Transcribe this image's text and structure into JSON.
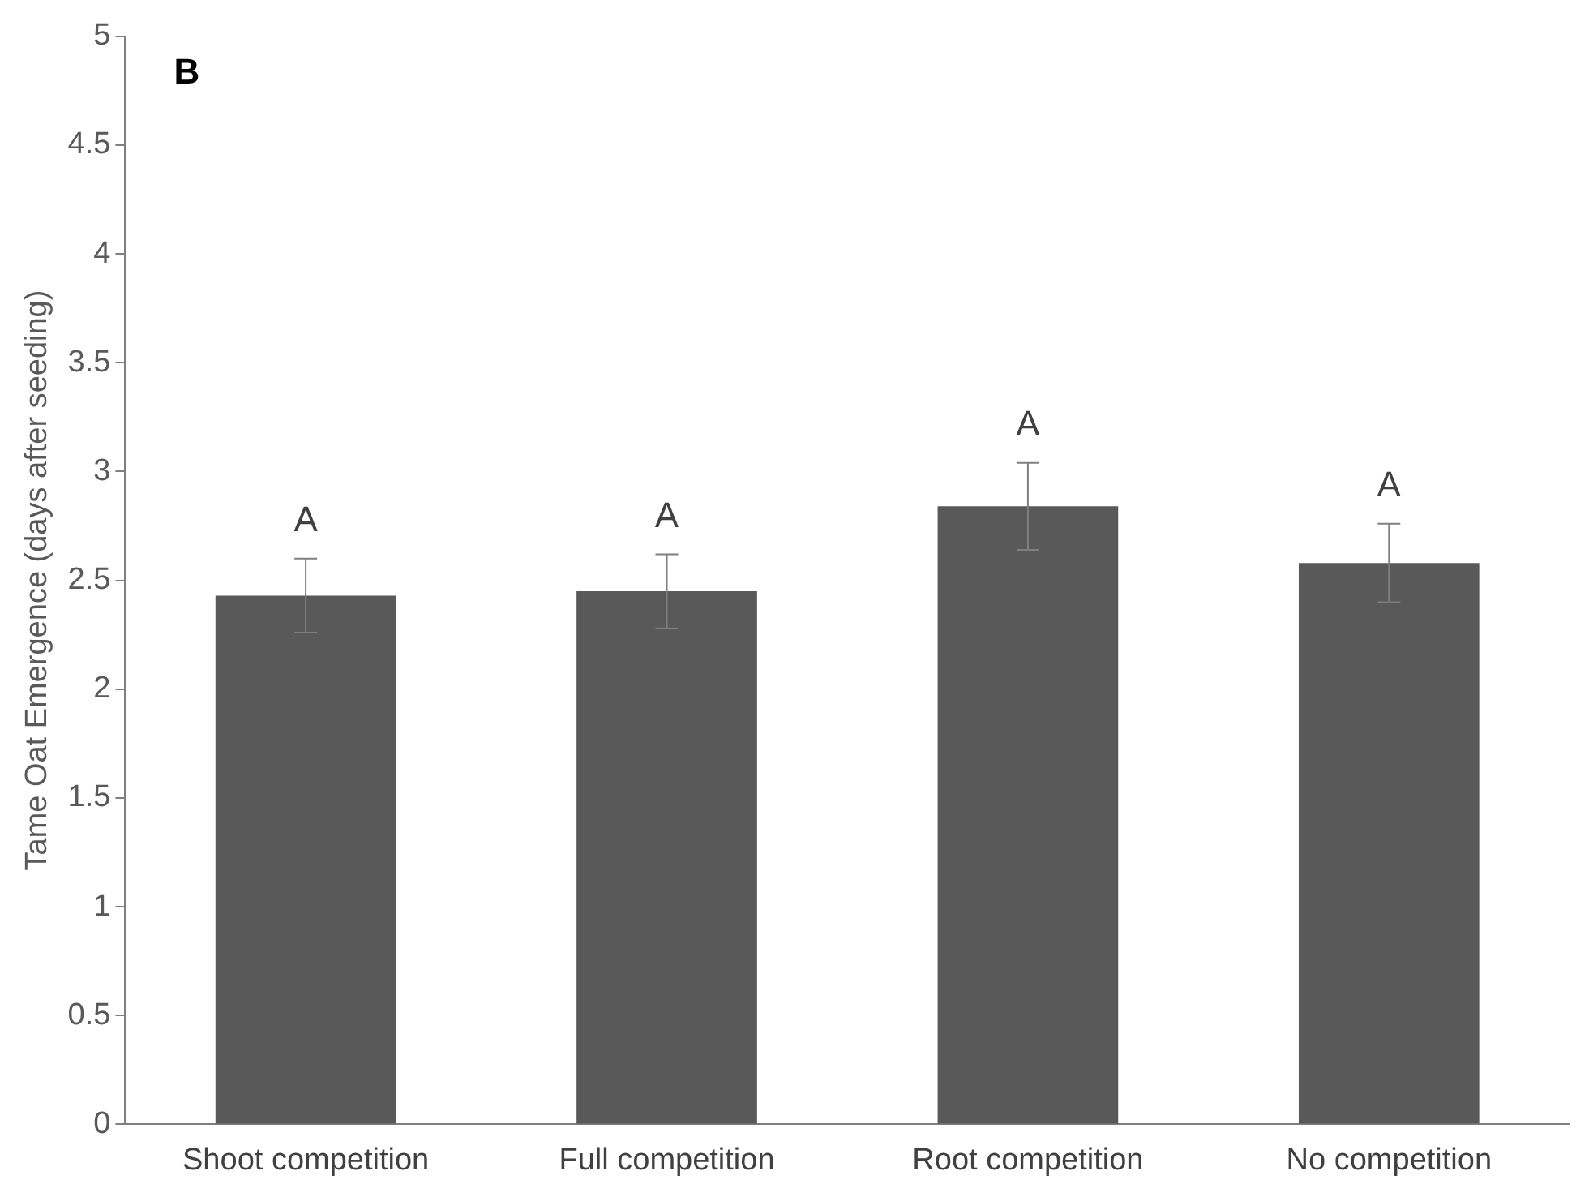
{
  "chart_data": {
    "type": "bar",
    "ylabel": "Tame Oat Emergence (days after seeding)",
    "categories": [
      "Shoot competition",
      "Full competition",
      "Root competition",
      "No competition"
    ],
    "values": [
      2.43,
      2.45,
      2.84,
      2.58
    ],
    "errors": [
      0.17,
      0.17,
      0.2,
      0.18
    ],
    "color": "#595959",
    "ylim": [
      0,
      5
    ],
    "yticks": [
      0,
      0.5,
      1,
      1.5,
      2,
      2.5,
      3,
      3.5,
      4,
      4.5,
      5
    ],
    "grid": false,
    "legend": false,
    "annotations": [
      "B",
      {
        "text": "A",
        "x": "Shoot competition",
        "y": 2.6
      },
      {
        "text": "A",
        "x": "Full competition",
        "y": 2.62
      },
      {
        "text": "A",
        "x": "Root competition",
        "y": 3.04
      },
      {
        "text": "A",
        "x": "No competition",
        "y": 2.76
      }
    ]
  }
}
